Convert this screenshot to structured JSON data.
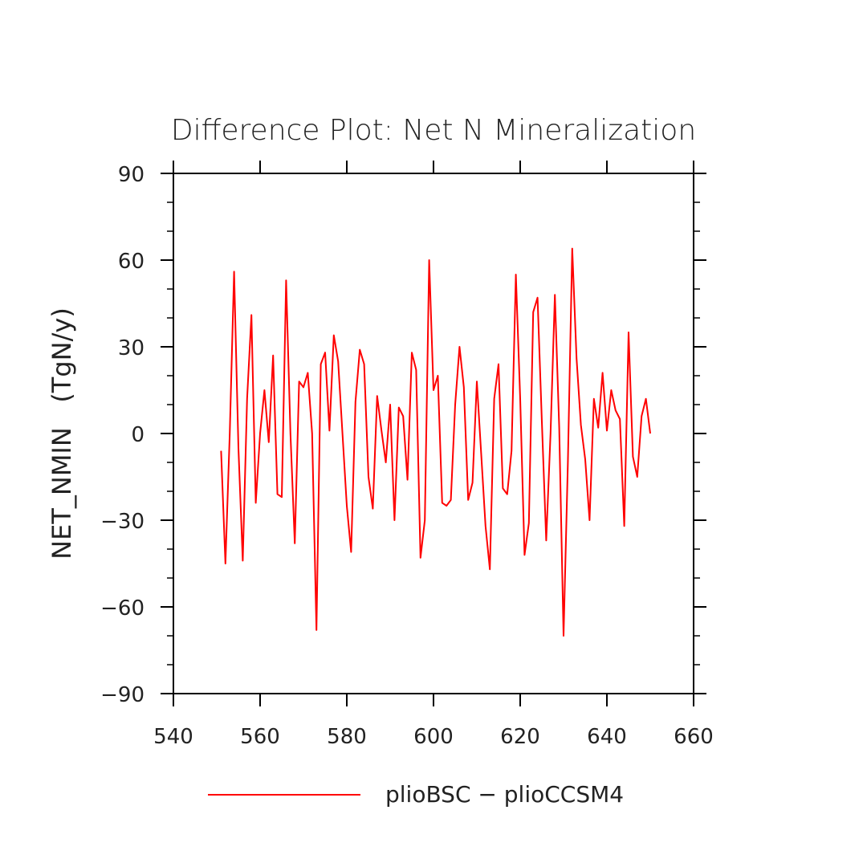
{
  "chart_data": {
    "type": "line",
    "title": "Difference Plot: Net N Mineralization",
    "xlabel": "",
    "ylabel": "NET_NMIN   (TgN/y)",
    "xlim": [
      540,
      660
    ],
    "ylim": [
      -90,
      90
    ],
    "xticks": [
      540,
      560,
      580,
      600,
      620,
      640,
      660
    ],
    "yticks": [
      -90,
      -60,
      -30,
      0,
      30,
      60,
      90
    ],
    "xtick_labels": [
      "540",
      "560",
      "580",
      "600",
      "620",
      "640",
      "660"
    ],
    "ytick_labels": [
      "−90",
      "−60",
      "−30",
      "0",
      "30",
      "60",
      "90"
    ],
    "grid": false,
    "legend_position": "bottom",
    "series": [
      {
        "name": "plioBSC − plioCCSM4",
        "color": "#ff0000",
        "x": [
          551,
          552,
          553,
          554,
          555,
          556,
          557,
          558,
          559,
          560,
          561,
          562,
          563,
          564,
          565,
          566,
          567,
          568,
          569,
          570,
          571,
          572,
          573,
          574,
          575,
          576,
          577,
          578,
          579,
          580,
          581,
          582,
          583,
          584,
          585,
          586,
          587,
          588,
          589,
          590,
          591,
          592,
          593,
          594,
          595,
          596,
          597,
          598,
          599,
          600,
          601,
          602,
          603,
          604,
          605,
          606,
          607,
          608,
          609,
          610,
          611,
          612,
          613,
          614,
          615,
          616,
          617,
          618,
          619,
          620,
          621,
          622,
          623,
          624,
          625,
          626,
          627,
          628,
          629,
          630,
          631,
          632,
          633,
          634,
          635,
          636,
          637,
          638,
          639,
          640,
          641,
          642,
          643,
          644,
          645,
          646,
          647,
          648,
          649,
          650
        ],
        "y": [
          -6,
          -45,
          0,
          56,
          -5,
          -44,
          12,
          41,
          -24,
          0,
          15,
          -3,
          27,
          -21,
          -22,
          53,
          0,
          -38,
          18,
          16,
          21,
          0,
          -68,
          24,
          28,
          1,
          34,
          25,
          0,
          -25,
          -41,
          11,
          29,
          24,
          -15,
          -26,
          13,
          1,
          -10,
          10,
          -30,
          9,
          6,
          -16,
          28,
          22,
          -43,
          -30,
          60,
          15,
          20,
          -24,
          -25,
          -23,
          10,
          30,
          16,
          -23,
          -17,
          18,
          -7,
          -32,
          -47,
          12,
          24,
          -19,
          -21,
          -6,
          55,
          12,
          -42,
          -31,
          42,
          47,
          4,
          -37,
          0,
          48,
          2,
          -70,
          -10,
          64,
          26,
          3,
          -9,
          -30,
          12,
          2,
          21,
          1,
          15,
          8,
          5,
          -32,
          35,
          -8,
          -15,
          6,
          12,
          0
        ]
      }
    ]
  }
}
